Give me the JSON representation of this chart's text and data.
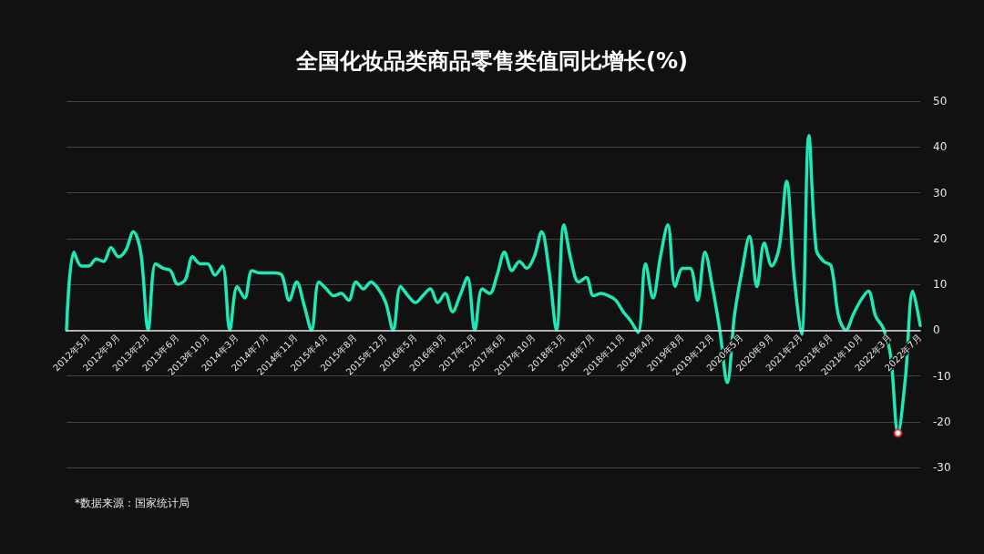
{
  "chart_data": {
    "type": "line",
    "title": "全国化妆品类商品零售类值同比增长(%)",
    "annotations": [
      "*数据来源：国家统计局"
    ],
    "categories": [
      null,
      null,
      null,
      "2012年5月",
      null,
      null,
      null,
      "2012年9月",
      null,
      null,
      null,
      "2013年2月",
      null,
      null,
      null,
      "2013年6月",
      null,
      null,
      null,
      "2013年10月",
      null,
      null,
      null,
      "2014年3月",
      null,
      null,
      null,
      "2014年7月",
      null,
      null,
      null,
      "2014年11月",
      null,
      null,
      null,
      "2015年4月",
      null,
      null,
      null,
      "2015年8月",
      null,
      null,
      null,
      "2015年12月",
      null,
      null,
      null,
      "2016年5月",
      null,
      null,
      null,
      "2016年9月",
      null,
      null,
      null,
      "2017年2月",
      null,
      null,
      null,
      "2017年6月",
      null,
      null,
      null,
      "2017年10月",
      null,
      null,
      null,
      "2018年3月",
      null,
      null,
      null,
      "2018年7月",
      null,
      null,
      null,
      "2018年11月",
      null,
      null,
      null,
      "2019年4月",
      null,
      null,
      null,
      "2019年8月",
      null,
      null,
      null,
      "2019年12月",
      null,
      null,
      null,
      "2020年5月",
      null,
      null,
      null,
      "2020年9月",
      null,
      null,
      null,
      "2021年2月",
      null,
      null,
      null,
      "2021年6月",
      null,
      null,
      null,
      "2021年10月",
      null,
      null,
      null,
      "2022年3月",
      null,
      null,
      null,
      "2022年7月"
    ],
    "series": [
      {
        "color": "#1de9b6",
        "marker": "none",
        "values": [
          0,
          17,
          14,
          14,
          15.5,
          15,
          18,
          16,
          17.5,
          21.5,
          17,
          0,
          14.5,
          13.5,
          13,
          10,
          11,
          16,
          14.5,
          14.5,
          12,
          14,
          0,
          9.5,
          7,
          13,
          12.5,
          12.5,
          12.5,
          12,
          6.5,
          10.5,
          5.5,
          0,
          10.5,
          9,
          7.5,
          8,
          6.5,
          10.5,
          9,
          10.5,
          9,
          6,
          0,
          9.5,
          7.5,
          6,
          7.5,
          9,
          6,
          8,
          4,
          7.5,
          11.5,
          0,
          9,
          8,
          12,
          17,
          13,
          15,
          13.5,
          16,
          21.5,
          13,
          0,
          23,
          15,
          10.5,
          11.5,
          7.5,
          8,
          7.5,
          6.5,
          4,
          2,
          -0.5,
          14.5,
          7,
          16,
          23,
          9.5,
          13.5,
          13.5,
          6.5,
          17,
          9.5,
          0,
          -11.5,
          3.5,
          13,
          20.5,
          9.5,
          19,
          14,
          18,
          32.5,
          12,
          -1,
          42.5,
          17.5,
          15,
          14,
          3,
          0,
          3.5,
          6.5,
          8.5,
          3,
          0.5,
          -5.5,
          -22.5,
          -10.5,
          8.5,
          1
        ]
      },
      {
        "type": "scatter",
        "color": "#e02020",
        "marker": "circle",
        "values": [
          null,
          null,
          null,
          null,
          null,
          null,
          null,
          null,
          null,
          null,
          null,
          null,
          null,
          null,
          null,
          null,
          null,
          null,
          null,
          null,
          null,
          null,
          null,
          null,
          null,
          null,
          null,
          null,
          null,
          null,
          null,
          null,
          null,
          null,
          null,
          null,
          null,
          null,
          null,
          null,
          null,
          null,
          null,
          null,
          null,
          null,
          null,
          null,
          null,
          null,
          null,
          null,
          null,
          null,
          null,
          null,
          null,
          null,
          null,
          null,
          null,
          null,
          null,
          null,
          null,
          null,
          null,
          null,
          null,
          null,
          null,
          null,
          null,
          null,
          null,
          null,
          null,
          null,
          null,
          null,
          null,
          null,
          null,
          null,
          null,
          null,
          null,
          null,
          null,
          null,
          null,
          null,
          null,
          null,
          null,
          null,
          null,
          null,
          null,
          null,
          null,
          null,
          null,
          null,
          null,
          null,
          null,
          null,
          null,
          null,
          null,
          null,
          -22.5,
          null,
          null,
          null
        ]
      }
    ],
    "ylim": [
      -30,
      50
    ],
    "yticks": [
      -30,
      -20,
      -10,
      0,
      10,
      20,
      30,
      40,
      50
    ],
    "grid": "y"
  }
}
